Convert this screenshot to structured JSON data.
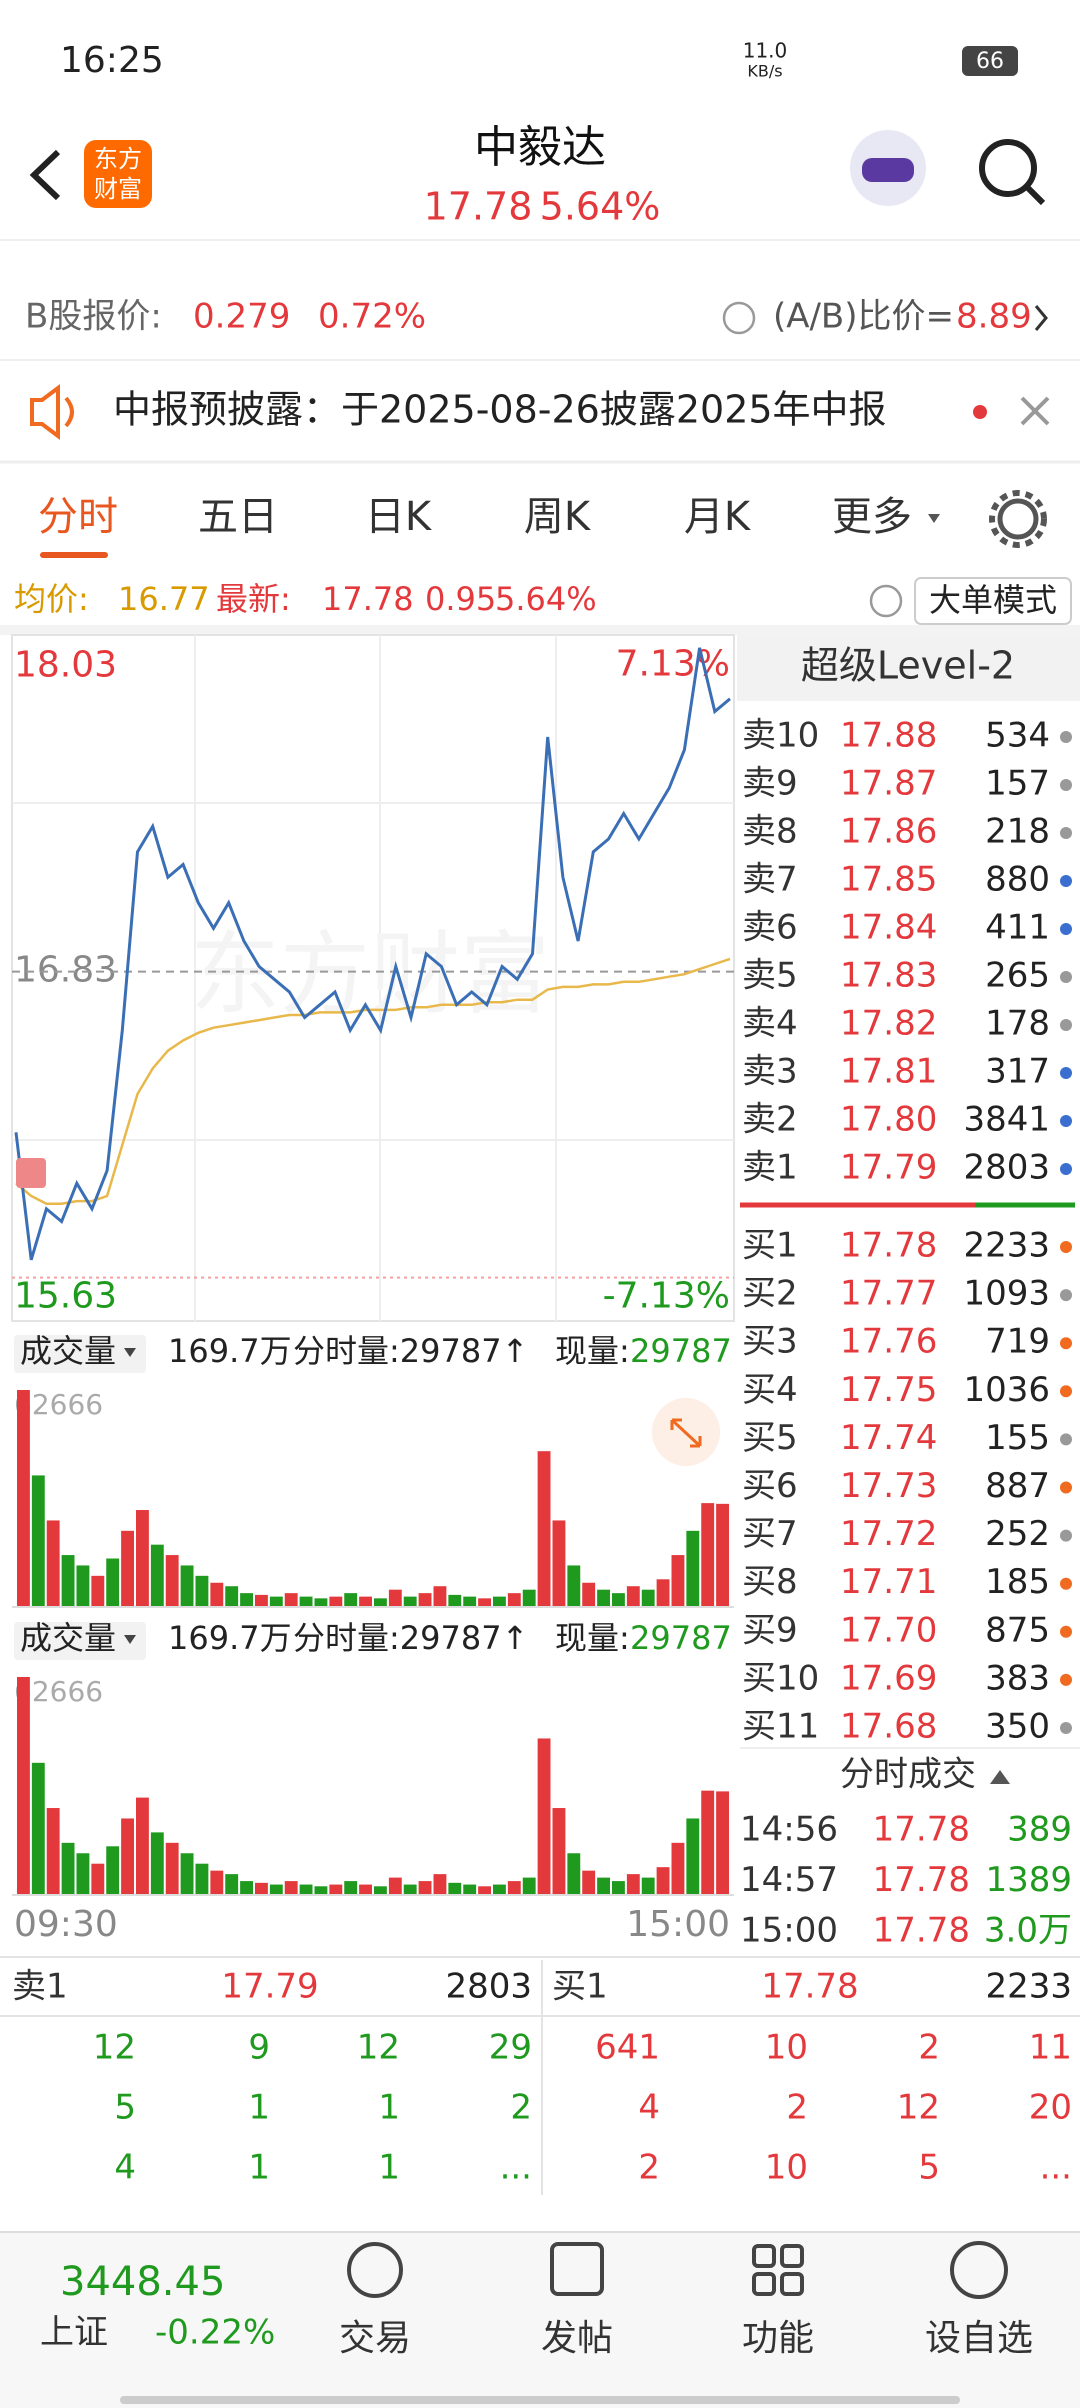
{
  "status_bar": {
    "time": "16:25",
    "speed": "11.0",
    "speed_unit": "KB/s",
    "battery": "66"
  },
  "header": {
    "logo": [
      "东方",
      "财富"
    ],
    "title": "中毅达",
    "price": "17.78",
    "change_pct": "5.64%"
  },
  "b_share": {
    "label": "B股报价:",
    "price": "0.279",
    "pct": "0.72%",
    "ratio_label": "(A/B)比价=",
    "ratio": "8.89"
  },
  "notice": "中报预披露：于2025-08-26披露2025年中报",
  "tabs": [
    "分时",
    "五日",
    "日K",
    "周K",
    "月K",
    "更多"
  ],
  "info": {
    "avg_label": "均价:",
    "avg": "16.77",
    "latest_label": "最新:",
    "latest": "17.78",
    "change": "0.95",
    "pct": "5.64%",
    "mode": "大单模式"
  },
  "price_chart": {
    "ylim": [
      15.46,
      18.15
    ],
    "yticks": [
      15.63,
      16.83,
      18.03
    ],
    "max_pct": "7.13%",
    "min_pct": "-7.13%",
    "watermark": "东方财富",
    "start": "09:30",
    "end": "15:00",
    "prices": [
      16.2,
      15.7,
      15.9,
      15.85,
      16.0,
      15.9,
      16.05,
      16.6,
      17.3,
      17.4,
      17.2,
      17.25,
      17.1,
      17.0,
      17.1,
      16.95,
      16.85,
      16.8,
      16.75,
      16.65,
      16.7,
      16.75,
      16.6,
      16.7,
      16.6,
      16.85,
      16.65,
      16.9,
      16.85,
      16.7,
      16.75,
      16.7,
      16.85,
      16.8,
      16.9,
      17.75,
      17.2,
      16.95,
      17.3,
      17.35,
      17.45,
      17.35,
      17.45,
      17.55,
      17.7,
      18.1,
      17.85,
      17.9
    ],
    "avg": [
      16.0,
      15.95,
      15.92,
      15.92,
      15.93,
      15.93,
      15.95,
      16.15,
      16.35,
      16.45,
      16.52,
      16.56,
      16.59,
      16.61,
      16.62,
      16.63,
      16.64,
      16.65,
      16.66,
      16.66,
      16.67,
      16.67,
      16.67,
      16.68,
      16.68,
      16.68,
      16.69,
      16.69,
      16.7,
      16.7,
      16.7,
      16.71,
      16.71,
      16.72,
      16.72,
      16.76,
      16.77,
      16.77,
      16.78,
      16.78,
      16.79,
      16.79,
      16.8,
      16.81,
      16.82,
      16.84,
      16.86,
      16.88
    ],
    "price_color": "#3a6fb5",
    "avg_color": "#e8b84a"
  },
  "volume": {
    "selector": "成交量",
    "total": "169.7万",
    "minute_label": "分时量:29787↑",
    "now_label": "现量:",
    "now": "29787",
    "ylim": [
      0,
      62666
    ],
    "yticks": [
      62666
    ],
    "values": [
      62666,
      38000,
      25000,
      15000,
      12000,
      9000,
      14000,
      22000,
      28000,
      18000,
      15000,
      12000,
      9000,
      7000,
      6000,
      4000,
      3500,
      3000,
      4000,
      3000,
      2500,
      3000,
      4000,
      3000,
      2500,
      5000,
      3000,
      4000,
      6000,
      3500,
      3000,
      2500,
      3000,
      4000,
      5000,
      45000,
      25000,
      12000,
      7000,
      5000,
      4000,
      6000,
      5000,
      8000,
      15000,
      22000,
      30000,
      29787
    ],
    "colors": [
      "#e4393c",
      "#1f9a1f",
      "#e4393c",
      "#1f9a1f",
      "#1f9a1f",
      "#e4393c",
      "#1f9a1f",
      "#e4393c",
      "#e4393c",
      "#1f9a1f",
      "#e4393c",
      "#1f9a1f",
      "#1f9a1f",
      "#e4393c",
      "#1f9a1f",
      "#1f9a1f",
      "#e4393c",
      "#1f9a1f",
      "#e4393c",
      "#1f9a1f",
      "#1f9a1f",
      "#e4393c",
      "#1f9a1f",
      "#e4393c",
      "#1f9a1f",
      "#e4393c",
      "#1f9a1f",
      "#e4393c",
      "#e4393c",
      "#1f9a1f",
      "#1f9a1f",
      "#e4393c",
      "#1f9a1f",
      "#e4393c",
      "#1f9a1f",
      "#e4393c",
      "#e4393c",
      "#1f9a1f",
      "#e4393c",
      "#1f9a1f",
      "#1f9a1f",
      "#e4393c",
      "#1f9a1f",
      "#e4393c",
      "#e4393c",
      "#1f9a1f",
      "#e4393c",
      "#e4393c"
    ]
  },
  "order_book": {
    "title": "超级Level-2",
    "sells": [
      {
        "label": "卖10",
        "price": "17.88",
        "volume": "534",
        "dot": "#999999"
      },
      {
        "label": "卖9",
        "price": "17.87",
        "volume": "157",
        "dot": "#999999"
      },
      {
        "label": "卖8",
        "price": "17.86",
        "volume": "218",
        "dot": "#999999"
      },
      {
        "label": "卖7",
        "price": "17.85",
        "volume": "880",
        "dot": "#3a6fd0"
      },
      {
        "label": "卖6",
        "price": "17.84",
        "volume": "411",
        "dot": "#3a6fd0"
      },
      {
        "label": "卖5",
        "price": "17.83",
        "volume": "265",
        "dot": "#999999"
      },
      {
        "label": "卖4",
        "price": "17.82",
        "volume": "178",
        "dot": "#999999"
      },
      {
        "label": "卖3",
        "price": "17.81",
        "volume": "317",
        "dot": "#3a6fd0"
      },
      {
        "label": "卖2",
        "price": "17.80",
        "volume": "3841",
        "dot": "#3a6fd0"
      },
      {
        "label": "卖1",
        "price": "17.79",
        "volume": "2803",
        "dot": "#3a6fd0"
      }
    ],
    "buys": [
      {
        "label": "买1",
        "price": "17.78",
        "volume": "2233",
        "dot": "#f06a1f"
      },
      {
        "label": "买2",
        "price": "17.77",
        "volume": "1093",
        "dot": "#999999"
      },
      {
        "label": "买3",
        "price": "17.76",
        "volume": "719",
        "dot": "#f06a1f"
      },
      {
        "label": "买4",
        "price": "17.75",
        "volume": "1036",
        "dot": "#f06a1f"
      },
      {
        "label": "买5",
        "price": "17.74",
        "volume": "155",
        "dot": "#999999"
      },
      {
        "label": "买6",
        "price": "17.73",
        "volume": "887",
        "dot": "#f06a1f"
      },
      {
        "label": "买7",
        "price": "17.72",
        "volume": "252",
        "dot": "#999999"
      },
      {
        "label": "买8",
        "price": "17.71",
        "volume": "185",
        "dot": "#f06a1f"
      },
      {
        "label": "买9",
        "price": "17.70",
        "volume": "875",
        "dot": "#f06a1f"
      },
      {
        "label": "买10",
        "price": "17.69",
        "volume": "383",
        "dot": "#f06a1f"
      },
      {
        "label": "买11",
        "price": "17.68",
        "volume": "350",
        "dot": "#999999"
      }
    ]
  },
  "trades": {
    "title": "分时成交",
    "rows": [
      [
        "14:56",
        "17.78",
        "389"
      ],
      [
        "14:57",
        "17.78",
        "1389"
      ],
      [
        "15:00",
        "17.78",
        "3.0万"
      ]
    ]
  },
  "depth": {
    "sell": {
      "label": "卖1",
      "price": "17.79",
      "volume": "2803",
      "orders": [
        [
          "12",
          "9",
          "12",
          "29"
        ],
        [
          "5",
          "1",
          "1",
          "2"
        ],
        [
          "4",
          "1",
          "1",
          "..."
        ]
      ]
    },
    "buy": {
      "label": "买1",
      "price": "17.78",
      "volume": "2233",
      "orders": [
        [
          "641",
          "10",
          "2",
          "11"
        ],
        [
          "4",
          "2",
          "12",
          "20"
        ],
        [
          "2",
          "10",
          "5",
          "..."
        ]
      ]
    }
  },
  "nav": {
    "index": {
      "value": "3448.45",
      "name": "上证",
      "pct": "-0.22%"
    },
    "items": [
      "交易",
      "发帖",
      "功能",
      "设自选"
    ]
  }
}
